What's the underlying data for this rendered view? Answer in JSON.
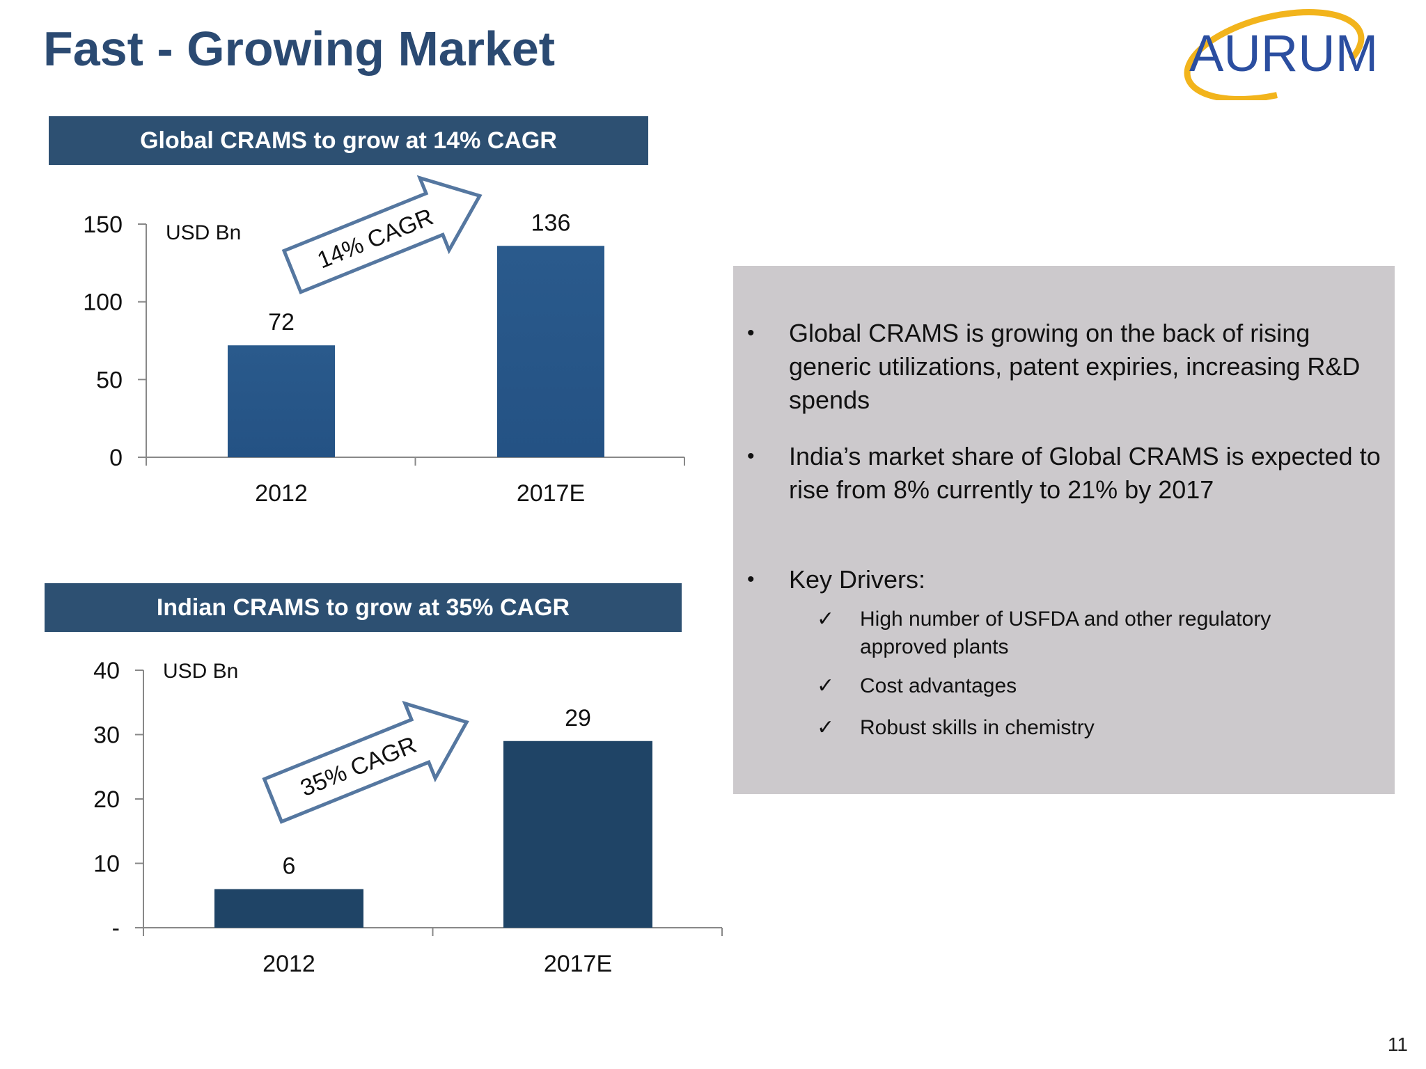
{
  "slide": {
    "title": "Fast - Growing Market",
    "page_number": "11"
  },
  "logo": {
    "text": "AURUM",
    "brand_color": "#2b4ea0",
    "ring_color": "#f2b41c"
  },
  "colors": {
    "header_bg": "#2d5072",
    "bar_top": "#2a5a8c",
    "bar_bottom": "#1f4466",
    "info_bg": "#ccc9cc"
  },
  "chart_data": [
    {
      "type": "bar",
      "header": "Global CRAMS  to grow at 14% CAGR",
      "unit_label": "USD Bn",
      "categories": [
        "2012",
        "2017E"
      ],
      "values": [
        72,
        136
      ],
      "data_labels": [
        "72",
        "136"
      ],
      "ylim": [
        0,
        150
      ],
      "yticks": [
        0,
        50,
        100,
        150
      ],
      "ytick_labels": [
        "0",
        "50",
        "100",
        "150"
      ],
      "annotation": "14% CAGR",
      "grid": false
    },
    {
      "type": "bar",
      "header": "Indian CRAMS to grow at 35% CAGR",
      "unit_label": "USD Bn",
      "categories": [
        "2012",
        "2017E"
      ],
      "values": [
        6,
        29
      ],
      "data_labels": [
        "6",
        "29"
      ],
      "ylim": [
        0,
        40
      ],
      "yticks": [
        0,
        10,
        20,
        30,
        40
      ],
      "ytick_labels": [
        "-",
        "10",
        "20",
        "30",
        "40"
      ],
      "annotation": "35% CAGR",
      "grid": false
    }
  ],
  "info": {
    "bullets": [
      "Global CRAMS is growing on the back of rising generic utilizations, patent expiries, increasing R&D spends",
      "India’s market share of Global CRAMS is expected to rise from 8% currently to 21% by 2017",
      "Key Drivers:"
    ],
    "drivers": [
      "High number of USFDA and other regulatory approved plants",
      "Cost advantages",
      "Robust skills in chemistry"
    ],
    "bullet_glyph": "•",
    "check_glyph": "✓"
  }
}
